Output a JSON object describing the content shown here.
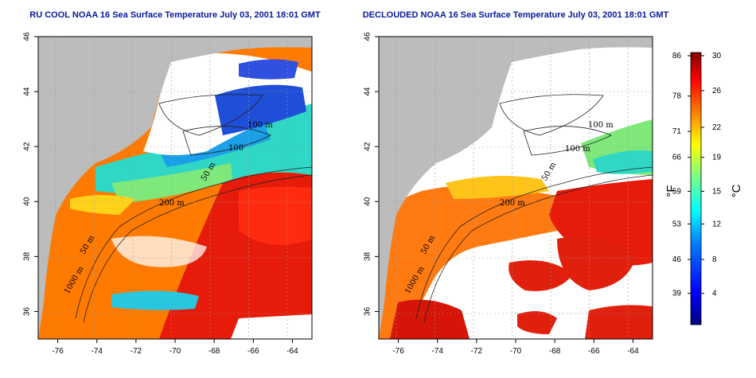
{
  "panels": [
    {
      "title": "RU COOL NOAA 16 Sea Surface Temperature July 03, 2001 18:01 GMT",
      "contour_labels": [
        "100 m",
        "100",
        "50 m",
        "200 m",
        "50 m",
        "1000 m"
      ]
    },
    {
      "title": "DECLOUDED NOAA 16 Sea Surface Temperature July 03, 2001 18:01 GMT",
      "contour_labels": [
        "100 m",
        "100 m",
        "50 m",
        "200 m",
        "50 m",
        "1000 m"
      ]
    }
  ],
  "axes": {
    "x_ticks": [
      "-76",
      "-74",
      "-72",
      "-70",
      "-68",
      "-66",
      "-64"
    ],
    "y_ticks": [
      "36",
      "38",
      "40",
      "42",
      "44",
      "46"
    ],
    "xlim": [
      -77,
      -63
    ],
    "ylim": [
      35,
      46
    ]
  },
  "colorbar": {
    "f_label": "°F",
    "c_label": "°C",
    "f_ticks": [
      "86",
      "78",
      "71",
      "66",
      "59",
      "53",
      "46",
      "39"
    ],
    "c_ticks": [
      "30",
      "26",
      "22",
      "19",
      "15",
      "12",
      "8",
      "4"
    ],
    "colors": [
      "#00007f",
      "#0000ff",
      "#007fff",
      "#00ffff",
      "#7fff7f",
      "#ffff00",
      "#ff7f00",
      "#ff0000",
      "#7f0000"
    ]
  },
  "colors": {
    "land": "#bcbcbc",
    "cloud_mask": "#ffffff",
    "title": "#0a1a9a"
  }
}
